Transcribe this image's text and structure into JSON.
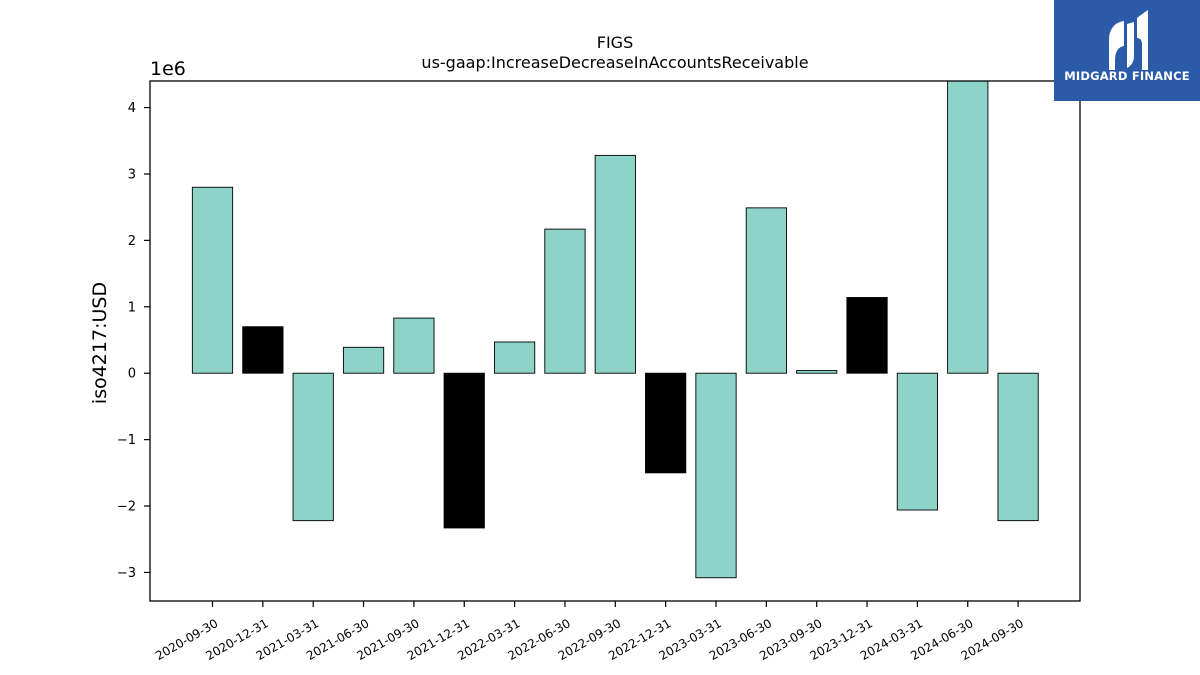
{
  "chart_data": {
    "type": "bar",
    "title": "FIGS",
    "subtitle": "us-gaap:IncreaseDecreaseInAccountsReceivable",
    "xlabel": "",
    "ylabel": "iso4217:USD",
    "y_scale_label": "1e6",
    "ylim": [
      -3.43,
      4.4
    ],
    "yticks": [
      -3,
      -2,
      -1,
      0,
      1,
      2,
      3,
      4
    ],
    "ytick_labels": [
      "−3",
      "−2",
      "−1",
      "0",
      "1",
      "2",
      "3",
      "4"
    ],
    "grid": false,
    "categories": [
      "2020-09-30",
      "2020-12-31",
      "2021-03-31",
      "2021-06-30",
      "2021-09-30",
      "2021-12-31",
      "2022-03-31",
      "2022-06-30",
      "2022-09-30",
      "2022-12-31",
      "2023-03-31",
      "2023-06-30",
      "2023-09-30",
      "2023-12-31",
      "2024-03-31",
      "2024-06-30",
      "2024-09-30"
    ],
    "values": [
      2.8,
      0.7,
      -2.22,
      0.39,
      0.83,
      -2.33,
      0.47,
      2.17,
      3.28,
      -1.5,
      -3.08,
      2.49,
      0.04,
      1.14,
      -2.06,
      4.4,
      -2.22
    ],
    "highlight": [
      false,
      true,
      false,
      false,
      false,
      true,
      false,
      false,
      false,
      true,
      false,
      false,
      false,
      true,
      false,
      false,
      false
    ],
    "colors": {
      "bar": "#8dd3c7",
      "highlight": "#000000",
      "edge": "#000000"
    }
  },
  "logo": {
    "text": "MIDGARD FINANCE",
    "background": "#2b5ba8"
  }
}
